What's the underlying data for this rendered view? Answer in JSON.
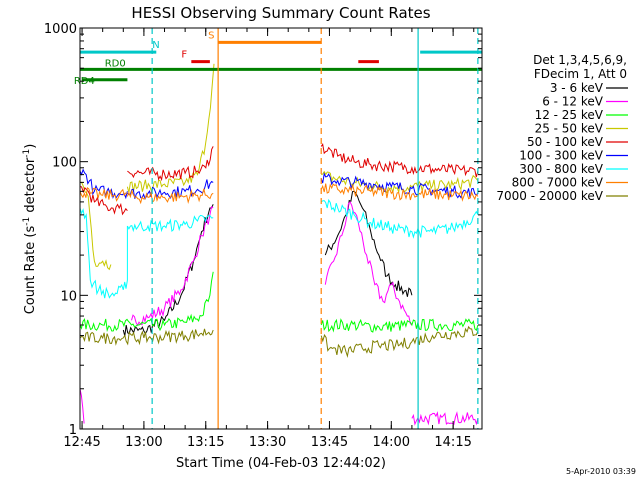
{
  "chart_data": {
    "type": "line",
    "title": "HESSI Observing Summary Count Rates",
    "xlabel": "Start Time (04-Feb-03 12:44:02)",
    "ylabel_main": "Count Rate (s",
    "ylabel_sup1": "-1",
    "ylabel_mid": " detector",
    "ylabel_sup2": "-1",
    "ylabel_end": ")",
    "y_scale": "log",
    "ylim": [
      1,
      1000
    ],
    "xlim_minutes": [
      -0.5,
      97
    ],
    "x_ticks": [
      {
        "m": 0,
        "label": "12:45"
      },
      {
        "m": 15,
        "label": "13:00"
      },
      {
        "m": 30,
        "label": "13:15"
      },
      {
        "m": 45,
        "label": "13:30"
      },
      {
        "m": 60,
        "label": "13:45"
      },
      {
        "m": 75,
        "label": "14:00"
      },
      {
        "m": 90,
        "label": "14:15"
      }
    ],
    "y_ticks": [
      {
        "v": 1,
        "label": "1"
      },
      {
        "v": 10,
        "label": "10"
      },
      {
        "v": 100,
        "label": "100"
      },
      {
        "v": 1000,
        "label": "1000"
      }
    ],
    "date_stamp": "5-Apr-2010 03:39",
    "legend_header": [
      "Det 1,3,4,5,6,9,",
      "FDecim 1, Att 0"
    ],
    "legend_placement": "right",
    "flags": [
      {
        "label": "N",
        "color": "#00c8c8",
        "y": 660,
        "spans": [
          [
            -0.5,
            18
          ],
          [
            82,
            97
          ]
        ]
      },
      {
        "label": "S",
        "color": "#ff7f00",
        "y": 780,
        "spans": [
          [
            33,
            58
          ]
        ]
      },
      {
        "label": "F",
        "color": "#e00000",
        "y": 560,
        "spans": [
          [
            26.5,
            31
          ],
          [
            67,
            72
          ]
        ]
      },
      {
        "label": "RD0",
        "color": "#008000",
        "y": 490,
        "spans": [
          [
            -0.5,
            97
          ]
        ]
      },
      {
        "label": "RD4",
        "color": "#008000",
        "y": 410,
        "spans": [
          [
            0,
            11
          ]
        ]
      }
    ],
    "vlines": [
      {
        "m": 17,
        "color": "#00c8c8",
        "style": "dashed"
      },
      {
        "m": 33,
        "color": "#ff7f00",
        "style": "solid"
      },
      {
        "m": 58,
        "color": "#ff7f00",
        "style": "dashed"
      },
      {
        "m": 81.5,
        "color": "#00c8c8",
        "style": "solid"
      },
      {
        "m": 96,
        "color": "#00c8c8",
        "style": "dashed"
      }
    ],
    "series": [
      {
        "name": "3 - 6 keV",
        "color": "#000000",
        "segments": [
          [
            [
              10,
              5.5
            ],
            [
              15,
              5.4
            ],
            [
              20,
              6.5
            ],
            [
              24,
              10
            ],
            [
              27,
              18
            ],
            [
              29,
              30
            ],
            [
              31,
              45
            ],
            [
              31.8,
              48
            ]
          ],
          [
            [
              59,
              20
            ],
            [
              62,
              28
            ],
            [
              64,
              40
            ],
            [
              66,
              60
            ],
            [
              68,
              45
            ],
            [
              70,
              30
            ],
            [
              72,
              20
            ],
            [
              74,
              14
            ],
            [
              76,
              12
            ],
            [
              80,
              10
            ]
          ]
        ]
      },
      {
        "name": "6 - 12 keV",
        "color": "#ff00ff",
        "segments": [
          [
            [
              -0.5,
              2
            ],
            [
              0.5,
              1.1
            ]
          ],
          [
            [
              12,
              6.5
            ],
            [
              16,
              6.8
            ],
            [
              20,
              8
            ],
            [
              24,
              11
            ],
            [
              27,
              18
            ],
            [
              29,
              28
            ],
            [
              31,
              40
            ],
            [
              31.8,
              45
            ]
          ],
          [
            [
              59,
              12
            ],
            [
              61,
              18
            ],
            [
              63,
              28
            ],
            [
              65,
              50
            ],
            [
              67,
              35
            ],
            [
              69,
              20
            ],
            [
              71,
              12
            ],
            [
              73,
              9
            ],
            [
              75,
              12
            ],
            [
              77,
              9
            ],
            [
              80,
              6
            ]
          ],
          [
            [
              80,
              1.2
            ],
            [
              96,
              1.2
            ]
          ]
        ]
      },
      {
        "name": "12 - 25 keV",
        "color": "#00ff00",
        "segments": [
          [
            [
              -0.5,
              6
            ],
            [
              5,
              6
            ],
            [
              12,
              6
            ],
            [
              20,
              6
            ],
            [
              25,
              6.3
            ],
            [
              29,
              7
            ],
            [
              31,
              10
            ],
            [
              31.8,
              15
            ]
          ],
          [
            [
              58,
              6
            ],
            [
              65,
              6
            ],
            [
              72,
              5.8
            ],
            [
              80,
              6
            ],
            [
              88,
              6
            ],
            [
              96,
              6
            ]
          ]
        ]
      },
      {
        "name": "25 - 50 keV",
        "color": "#c8c800",
        "segments": [
          [
            [
              -0.5,
              70
            ],
            [
              1.5,
              55
            ],
            [
              3,
              18
            ],
            [
              5,
              18
            ],
            [
              7,
              17
            ]
          ],
          [
            [
              11,
              65
            ],
            [
              15,
              66
            ],
            [
              20,
              68
            ],
            [
              25,
              70
            ],
            [
              28,
              80
            ],
            [
              30,
              140
            ],
            [
              31.5,
              350
            ],
            [
              32,
              540
            ]
          ],
          [
            [
              58,
              80
            ],
            [
              65,
              70
            ],
            [
              70,
              66
            ],
            [
              75,
              64
            ],
            [
              80,
              65
            ],
            [
              85,
              66
            ],
            [
              90,
              67
            ],
            [
              96,
              72
            ]
          ]
        ]
      },
      {
        "name": "50 - 100 keV",
        "color": "#e00000",
        "segments": [
          [
            [
              -0.5,
              65
            ],
            [
              1.5,
              60
            ],
            [
              3,
              50
            ],
            [
              6,
              46
            ],
            [
              9,
              45
            ],
            [
              11,
              43
            ]
          ],
          [
            [
              11,
              85
            ],
            [
              15,
              82
            ],
            [
              20,
              81
            ],
            [
              25,
              82
            ],
            [
              28,
              85
            ],
            [
              30,
              90
            ],
            [
              31.8,
              130
            ]
          ],
          [
            [
              58,
              130
            ],
            [
              62,
              110
            ],
            [
              66,
              100
            ],
            [
              70,
              95
            ],
            [
              75,
              92
            ],
            [
              80,
              90
            ],
            [
              85,
              88
            ],
            [
              90,
              86
            ],
            [
              96,
              85
            ]
          ]
        ]
      },
      {
        "name": "100 - 300 keV",
        "color": "#0000ff",
        "segments": [
          [
            [
              -0.5,
              85
            ],
            [
              1,
              80
            ],
            [
              3,
              60
            ],
            [
              6,
              60
            ],
            [
              9,
              58
            ],
            [
              11,
              60
            ]
          ],
          [
            [
              11,
              58
            ],
            [
              16,
              58
            ],
            [
              20,
              59
            ],
            [
              25,
              60
            ],
            [
              28,
              62
            ],
            [
              31.8,
              70
            ]
          ],
          [
            [
              58,
              75
            ],
            [
              62,
              72
            ],
            [
              66,
              70
            ],
            [
              70,
              68
            ],
            [
              75,
              65
            ],
            [
              80,
              63
            ],
            [
              85,
              61
            ],
            [
              90,
              60
            ],
            [
              96,
              58
            ]
          ]
        ]
      },
      {
        "name": "300 - 800 keV",
        "color": "#00ffff",
        "segments": [
          [
            [
              -0.5,
              45
            ],
            [
              1,
              40
            ],
            [
              2,
              13
            ],
            [
              4,
              11
            ],
            [
              7,
              10
            ],
            [
              10,
              11
            ],
            [
              11,
              13
            ],
            [
              11,
              33
            ]
          ],
          [
            [
              11,
              33
            ],
            [
              16,
              33
            ],
            [
              20,
              33
            ],
            [
              25,
              34
            ],
            [
              28,
              36
            ],
            [
              31.8,
              38
            ]
          ],
          [
            [
              58,
              50
            ],
            [
              62,
              45
            ],
            [
              66,
              40
            ],
            [
              70,
              35
            ],
            [
              75,
              32
            ],
            [
              80,
              30
            ],
            [
              85,
              30
            ],
            [
              90,
              32
            ],
            [
              96,
              40
            ]
          ]
        ]
      },
      {
        "name": "800 - 7000 keV",
        "color": "#ff7f00",
        "segments": [
          [
            [
              -0.5,
              60
            ],
            [
              2,
              58
            ],
            [
              5,
              56
            ],
            [
              8,
              56
            ],
            [
              11,
              58
            ]
          ],
          [
            [
              11,
              55
            ],
            [
              16,
              54
            ],
            [
              20,
              54
            ],
            [
              25,
              55
            ],
            [
              28,
              56
            ],
            [
              31.8,
              58
            ]
          ],
          [
            [
              58,
              62
            ],
            [
              62,
              62
            ],
            [
              66,
              60
            ],
            [
              70,
              60
            ],
            [
              75,
              58
            ],
            [
              80,
              57
            ],
            [
              85,
              57
            ],
            [
              90,
              56
            ],
            [
              96,
              55
            ]
          ]
        ]
      },
      {
        "name": "7000 - 20000 keV",
        "color": "#808000",
        "segments": [
          [
            [
              -0.5,
              4.8
            ],
            [
              5,
              4.8
            ],
            [
              10,
              4.8
            ],
            [
              15,
              4.8
            ],
            [
              20,
              4.9
            ],
            [
              25,
              5
            ],
            [
              29,
              5.2
            ],
            [
              31.8,
              5.5
            ]
          ],
          [
            [
              58,
              5
            ],
            [
              60,
              4
            ],
            [
              64,
              3.8
            ],
            [
              68,
              4
            ],
            [
              72,
              4.2
            ],
            [
              76,
              4.2
            ],
            [
              80,
              4.5
            ],
            [
              85,
              5
            ],
            [
              90,
              5.2
            ],
            [
              96,
              5.4
            ]
          ]
        ]
      }
    ]
  }
}
